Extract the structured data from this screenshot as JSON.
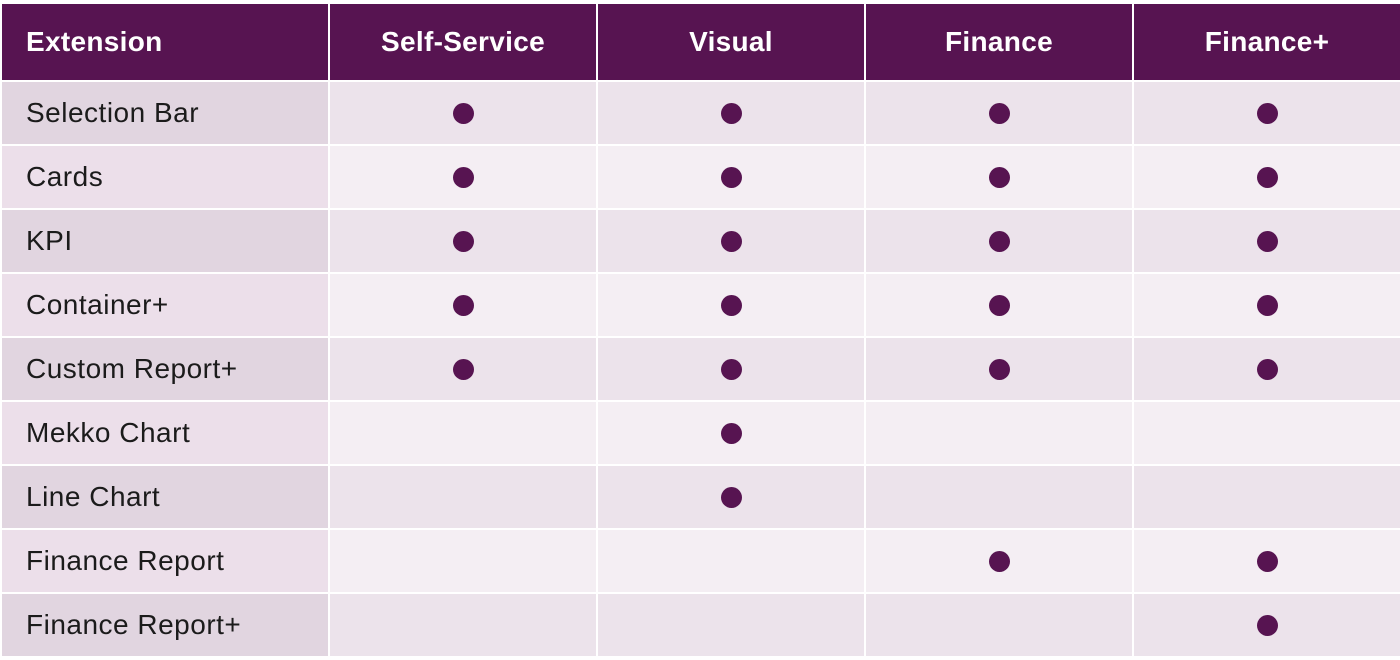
{
  "header": {
    "col0": "Extension",
    "col1": "Self-Service",
    "col2": "Visual",
    "col3": "Finance",
    "col4": "Finance+"
  },
  "rows": [
    {
      "label": "Selection Bar",
      "marks": [
        true,
        true,
        true,
        true
      ]
    },
    {
      "label": "Cards",
      "marks": [
        true,
        true,
        true,
        true
      ]
    },
    {
      "label": "KPI",
      "marks": [
        true,
        true,
        true,
        true
      ]
    },
    {
      "label": "Container+",
      "marks": [
        true,
        true,
        true,
        true
      ]
    },
    {
      "label": "Custom Report+",
      "marks": [
        true,
        true,
        true,
        true
      ]
    },
    {
      "label": "Mekko Chart",
      "marks": [
        false,
        true,
        false,
        false
      ]
    },
    {
      "label": "Line Chart",
      "marks": [
        false,
        true,
        false,
        false
      ]
    },
    {
      "label": "Finance Report",
      "marks": [
        false,
        false,
        true,
        true
      ]
    },
    {
      "label": "Finance Report+",
      "marks": [
        false,
        false,
        false,
        true
      ]
    }
  ],
  "colors": {
    "accent": "#571451",
    "label_cell_odd": "#e1d5e0",
    "label_cell_even": "#ecdfea",
    "data_cell_odd": "#ece3eb",
    "data_cell_even": "#f4eef3"
  },
  "icons": {
    "included_mark": "filled-circle-dot-icon"
  }
}
